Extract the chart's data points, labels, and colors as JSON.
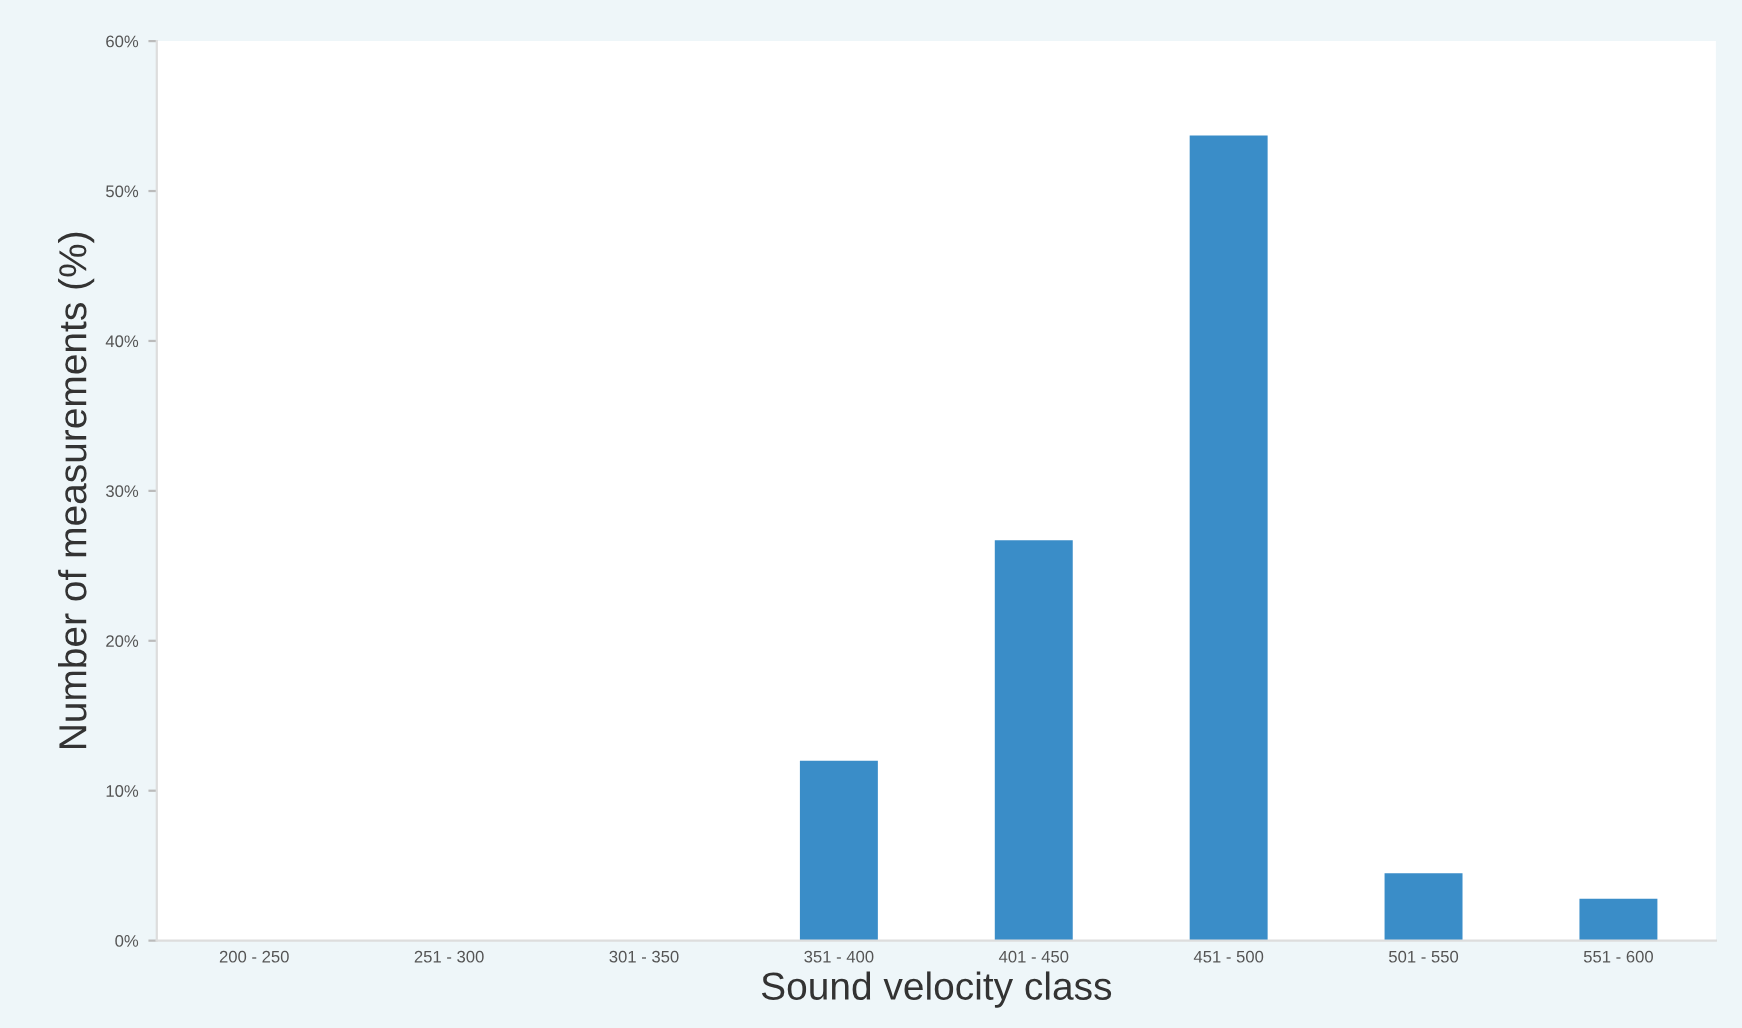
{
  "chart_data": {
    "type": "bar",
    "xlabel": "Sound velocity class",
    "ylabel": "Number of measurements (%)",
    "categories": [
      "200 - 250",
      "251 - 300",
      "301 - 350",
      "351 - 400",
      "401 - 450",
      "451 - 500",
      "501 - 550",
      "551 - 600"
    ],
    "values": [
      0,
      0,
      0,
      12,
      26.7,
      53.7,
      4.5,
      2.8
    ],
    "color": "#3a8dc8",
    "ylim": [
      0,
      60
    ],
    "yticks": [
      {
        "value": 0,
        "label": "0%"
      },
      {
        "value": 10,
        "label": "10%"
      },
      {
        "value": 20,
        "label": "20%"
      },
      {
        "value": 30,
        "label": "30%"
      },
      {
        "value": 40,
        "label": "40%"
      },
      {
        "value": 50,
        "label": "50%"
      },
      {
        "value": 60,
        "label": "60%"
      }
    ],
    "grid": false,
    "legend": false
  }
}
